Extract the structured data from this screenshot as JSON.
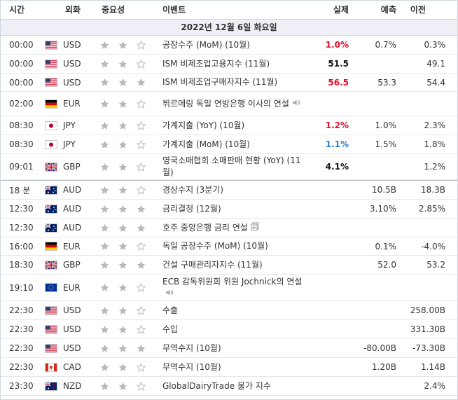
{
  "headers": {
    "time": "시간",
    "currency": "외화",
    "importance": "중요성",
    "event": "이벤트",
    "actual": "실제",
    "forecast": "예측",
    "previous": "이전"
  },
  "date_label": "2022년 12월 6일 화요일",
  "rows": [
    {
      "time": "00:00",
      "flag": "us",
      "currency": "USD",
      "stars": 2,
      "event": "공장수주 (MoM) (10월)",
      "actual": "1.0%",
      "actual_color": "red",
      "forecast": "0.7%",
      "previous": "0.3%"
    },
    {
      "time": "00:00",
      "flag": "us",
      "currency": "USD",
      "stars": 2,
      "event": "ISM 비제조업고용지수 (11월)",
      "actual": "51.5",
      "actual_color": "black",
      "forecast": "",
      "previous": "49.1"
    },
    {
      "time": "00:00",
      "flag": "us",
      "currency": "USD",
      "stars": 3,
      "event": "ISM 비제조업구매자지수 (11월)",
      "actual": "56.5",
      "actual_color": "red",
      "forecast": "53.3",
      "previous": "54.4"
    },
    {
      "time": "02:00",
      "flag": "de",
      "currency": "EUR",
      "stars": 2,
      "event": "뷔르메링 독일 연방은행 이사의 연설",
      "icon": "speaker-icon",
      "actual": "",
      "forecast": "",
      "previous": ""
    },
    {
      "time": "08:30",
      "flag": "jp",
      "currency": "JPY",
      "stars": 2,
      "event": "가계지출 (YoY) (10월)",
      "actual": "1.2%",
      "actual_color": "red",
      "forecast": "1.0%",
      "previous": "2.3%"
    },
    {
      "time": "08:30",
      "flag": "jp",
      "currency": "JPY",
      "stars": 2,
      "event": "가계지출 (MoM) (10월)",
      "actual": "1.1%",
      "actual_color": "blue",
      "forecast": "1.5%",
      "previous": "1.8%"
    },
    {
      "time": "09:01",
      "flag": "gb",
      "currency": "GBP",
      "stars": 2,
      "event": "영국소매협회 소매판매 현황 (YoY) (11월)",
      "actual": "4.1%",
      "actual_color": "black",
      "forecast": "",
      "previous": "1.2%"
    },
    {
      "time": "18 분",
      "flag": "au",
      "currency": "AUD",
      "stars": 2,
      "event": "경상수지 (3분기)",
      "actual": "",
      "forecast": "10.5B",
      "previous": "18.3B",
      "sep": true
    },
    {
      "time": "12:30",
      "flag": "au",
      "currency": "AUD",
      "stars": 3,
      "event": "금리결정 (12월)",
      "actual": "",
      "forecast": "3.10%",
      "previous": "2.85%"
    },
    {
      "time": "12:30",
      "flag": "au",
      "currency": "AUD",
      "stars": 3,
      "event": "호주 중앙은행 금리 연설",
      "icon": "document-icon",
      "actual": "",
      "forecast": "",
      "previous": ""
    },
    {
      "time": "16:00",
      "flag": "de",
      "currency": "EUR",
      "stars": 2,
      "event": "독일 공장수주 (MoM) (10월)",
      "actual": "",
      "forecast": "0.1%",
      "previous": "-4.0%"
    },
    {
      "time": "18:30",
      "flag": "gb",
      "currency": "GBP",
      "stars": 3,
      "event": "건설 구매관리자지수 (11월)",
      "actual": "",
      "forecast": "52.0",
      "previous": "53.2"
    },
    {
      "time": "19:10",
      "flag": "eu",
      "currency": "EUR",
      "stars": 2,
      "event": "ECB 감독위원회 위원 Jochnick의 연설",
      "icon": "speaker-icon",
      "actual": "",
      "forecast": "",
      "previous": ""
    },
    {
      "time": "22:30",
      "flag": "us",
      "currency": "USD",
      "stars": 2,
      "event": "수출",
      "actual": "",
      "forecast": "",
      "previous": "258.00B"
    },
    {
      "time": "22:30",
      "flag": "us",
      "currency": "USD",
      "stars": 2,
      "event": "수입",
      "actual": "",
      "forecast": "",
      "previous": "331.30B"
    },
    {
      "time": "22:30",
      "flag": "us",
      "currency": "USD",
      "stars": 3,
      "event": "무역수지 (10월)",
      "actual": "",
      "forecast": "-80.00B",
      "previous": "-73.30B"
    },
    {
      "time": "22:30",
      "flag": "ca",
      "currency": "CAD",
      "stars": 2,
      "event": "무역수지 (10월)",
      "actual": "",
      "forecast": "1.20B",
      "previous": "1.14B"
    },
    {
      "time": "23:30",
      "flag": "nz",
      "currency": "NZD",
      "stars": 2,
      "event": "GlobalDairyTrade 물가 지수",
      "actual": "",
      "forecast": "",
      "previous": "2.4%"
    }
  ]
}
